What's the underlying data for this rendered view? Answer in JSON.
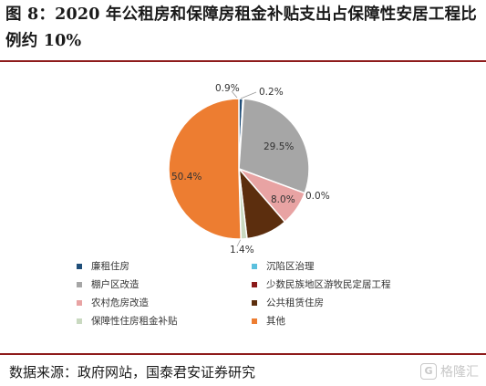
{
  "title": "图 8：2020 年公租房和保障房租金补贴支出占保障性安居工程比例约 10%",
  "source": "数据来源：政府网站，国泰君安证券研究",
  "watermark": "格隆汇",
  "watermark_icon": "G",
  "chart_data": {
    "type": "pie",
    "unit": "%",
    "slices": [
      {
        "name": "廉租住房",
        "value": 0.9,
        "label": "0.9%",
        "color": "#1f4e79"
      },
      {
        "name": "沉陷区治理",
        "value": 0.2,
        "label": "0.2%",
        "color": "#5bc0de"
      },
      {
        "name": "棚户区改造",
        "value": 29.5,
        "label": "29.5%",
        "color": "#a6a6a6"
      },
      {
        "name": "少数民族地区游牧民定居工程",
        "value": 0.0,
        "label": "0.0%",
        "color": "#8b1a1a"
      },
      {
        "name": "农村危房改造",
        "value": 8.0,
        "label": "8.0%",
        "color": "#e8a3a3"
      },
      {
        "name": "公共租赁住房",
        "value": 9.5,
        "label": "",
        "color": "#5c2e0e"
      },
      {
        "name": "保障性住房租金补贴",
        "value": 1.4,
        "label": "1.4%",
        "color": "#c9d9c0"
      },
      {
        "name": "其他",
        "value": 50.4,
        "label": "50.4%",
        "color": "#ed7d31"
      }
    ],
    "legend_position": "bottom"
  }
}
